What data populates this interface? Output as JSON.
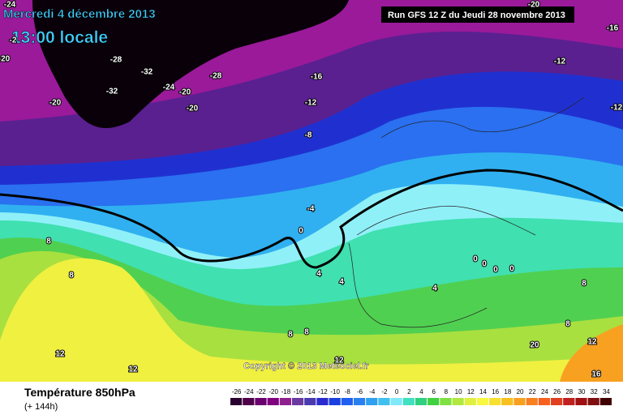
{
  "header": {
    "date": "Mercredi 4 décembre 2013",
    "time": "13:00 locale",
    "run": "Run GFS 12 Z du Jeudi 28 novembre 2013"
  },
  "copyright": "Copyright © 2013 Meteociel.fr",
  "footer": {
    "title": "Température 850hPa",
    "subtitle": "(+ 144h)"
  },
  "legend": {
    "values": [
      -26,
      -24,
      -22,
      -20,
      -18,
      -16,
      -14,
      -12,
      -10,
      -8,
      -6,
      -4,
      -2,
      0,
      2,
      4,
      6,
      8,
      10,
      12,
      14,
      16,
      18,
      20,
      22,
      24,
      26,
      28,
      30,
      32,
      34
    ],
    "colors": [
      "#2a0030",
      "#50004a",
      "#6a0070",
      "#800080",
      "#902090",
      "#6a3aa0",
      "#4a3ab0",
      "#2a2ad0",
      "#1a40e0",
      "#2060f0",
      "#2a80f0",
      "#30a0f0",
      "#40c0f0",
      "#80e8f8",
      "#40e0c0",
      "#30d080",
      "#40d040",
      "#80e040",
      "#b0e840",
      "#e0f040",
      "#f8f840",
      "#f8e030",
      "#f8c020",
      "#f8a020",
      "#f88020",
      "#f86020",
      "#e04020",
      "#c02020",
      "#a01010",
      "#801010",
      "#400000"
    ]
  },
  "isotherm_labels": [
    -24,
    -20,
    -16,
    -28,
    -32,
    -24,
    -20,
    -28,
    -16,
    -12,
    -32,
    -20,
    -20,
    -12,
    -12,
    -8,
    -4,
    0,
    4,
    4,
    8,
    8,
    0,
    0,
    0,
    0,
    4,
    8,
    8,
    8,
    12,
    12,
    12,
    8,
    12,
    16,
    20,
    -20,
    -2
  ]
}
